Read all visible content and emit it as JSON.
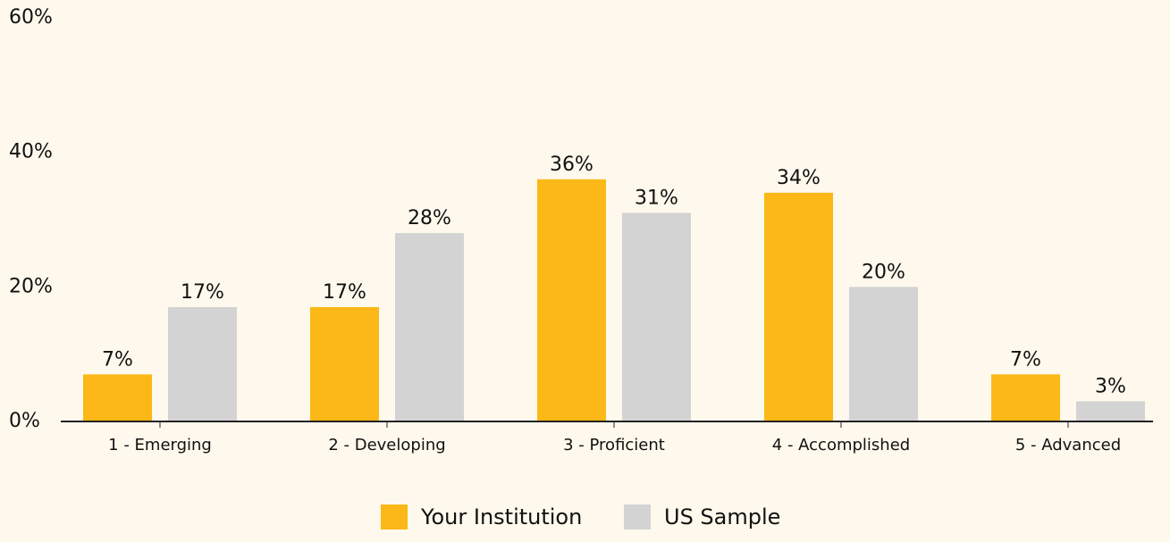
{
  "chart_data": {
    "type": "bar",
    "categories": [
      "1 - Emerging",
      "2 - Developing",
      "3 - Proficient",
      "4 - Accomplished",
      "5 - Advanced"
    ],
    "series": [
      {
        "name": "Your Institution",
        "color": "#fbb817",
        "values": [
          7,
          17,
          36,
          34,
          7
        ],
        "value_labels": [
          "7%",
          "17%",
          "36%",
          "34%",
          "7%"
        ]
      },
      {
        "name": "US Sample",
        "color": "#d3d3d3",
        "values": [
          17,
          28,
          31,
          20,
          3
        ],
        "value_labels": [
          "17%",
          "28%",
          "31%",
          "20%",
          "3%"
        ]
      }
    ],
    "ylim": [
      0,
      60
    ],
    "yticks": [
      {
        "value": 0,
        "label": "0%"
      },
      {
        "value": 20,
        "label": "20%"
      },
      {
        "value": 40,
        "label": "40%"
      },
      {
        "value": 60,
        "label": "60%"
      }
    ],
    "grid": false,
    "legend": "bottom"
  }
}
